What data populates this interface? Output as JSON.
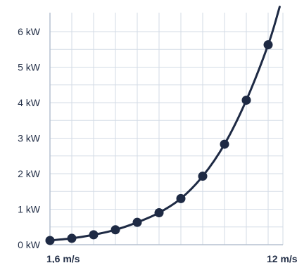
{
  "chart_data": {
    "type": "line",
    "title": "",
    "xlabel": "",
    "ylabel": "",
    "xlim": [
      1.6,
      12
    ],
    "ylim": [
      0,
      6.5
    ],
    "grid": true,
    "x_tick_labels": [
      {
        "value": 1.6,
        "label": "1,6 m/s"
      },
      {
        "value": 12,
        "label": "12 m/s"
      }
    ],
    "y_tick_labels": [
      {
        "value": 0,
        "label": "0 kW"
      },
      {
        "value": 1,
        "label": "1 kW"
      },
      {
        "value": 2,
        "label": "2 kW"
      },
      {
        "value": 3,
        "label": "3 kW"
      },
      {
        "value": 4,
        "label": "4 kW"
      },
      {
        "value": 5,
        "label": "5 kW"
      },
      {
        "value": 6,
        "label": "6 kW"
      }
    ],
    "x_gridlines": [
      1.6,
      2.64,
      3.68,
      4.72,
      5.76,
      6.8,
      7.84,
      8.88,
      9.92,
      10.96,
      12
    ],
    "y_gridlines": [
      0,
      0.5,
      1,
      1.5,
      2,
      2.5,
      3,
      3.5,
      4,
      4.5,
      5,
      5.5,
      6
    ],
    "series": [
      {
        "color": "#1e2a44",
        "x": [
          1.6,
          2.64,
          3.68,
          4.72,
          5.76,
          6.8,
          7.84,
          8.88,
          9.92,
          10.96,
          12
        ],
        "y": [
          0.12,
          0.18,
          0.28,
          0.42,
          0.63,
          0.9,
          1.3,
          1.93,
          2.83,
          4.07,
          5.63
        ],
        "curve_extends_to": {
          "x": 12.55,
          "y": 6.7
        }
      }
    ]
  }
}
